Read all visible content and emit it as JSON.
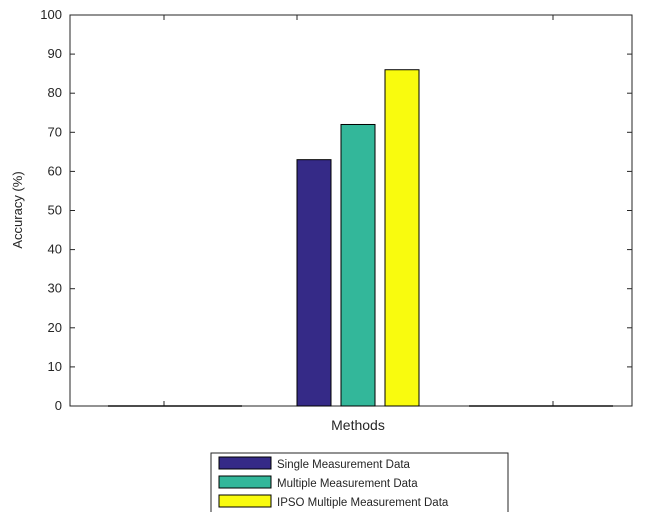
{
  "chart_data": {
    "type": "bar",
    "title": "",
    "xlabel": "Methods",
    "ylabel": "Accuracy (%)",
    "ylim": [
      0,
      100
    ],
    "yticks": [
      0,
      10,
      20,
      30,
      40,
      50,
      60,
      70,
      80,
      90,
      100
    ],
    "grid": false,
    "legend_position": "bottom-center-outside",
    "categories": [
      "Methods"
    ],
    "series": [
      {
        "name": "Single Measurement Data",
        "values": [
          63
        ],
        "color": "#352a87"
      },
      {
        "name": "Multiple Measurement Data",
        "values": [
          72
        ],
        "color": "#33b79a"
      },
      {
        "name": "IPSO Multiple Measurement Data",
        "values": [
          86
        ],
        "color": "#f9fb0e"
      }
    ]
  }
}
